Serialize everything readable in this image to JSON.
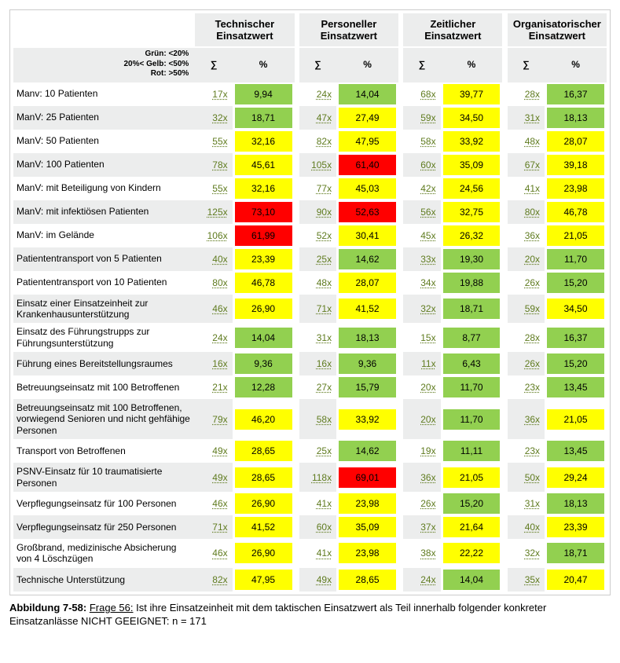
{
  "legend": {
    "green": "Grün: <20%",
    "yellow": "20%< Gelb: <50%",
    "red": "Rot: >50%"
  },
  "thresholds": {
    "green_max": 20,
    "yellow_max": 50
  },
  "colors": {
    "green": "#92d050",
    "yellow": "#ffff00",
    "red": "#ff0000",
    "header_bg": "#eceded",
    "sum_text": "#5f7b1f"
  },
  "groups": [
    {
      "label_line1": "Technischer",
      "label_line2": "Einsatzwert"
    },
    {
      "label_line1": "Personeller",
      "label_line2": "Einsatzwert"
    },
    {
      "label_line1": "Zeitlicher",
      "label_line2": "Einsatzwert"
    },
    {
      "label_line1": "Organisatorischer",
      "label_line2": "Einsatzwert"
    }
  ],
  "subheads": {
    "sum": "∑",
    "pct": "%"
  },
  "rows": [
    {
      "label": "Manv: 10 Patienten",
      "cells": [
        {
          "s": "17x",
          "p": "9,94"
        },
        {
          "s": "24x",
          "p": "14,04"
        },
        {
          "s": "68x",
          "p": "39,77"
        },
        {
          "s": "28x",
          "p": "16,37"
        }
      ]
    },
    {
      "label": "ManV: 25 Patienten",
      "cells": [
        {
          "s": "32x",
          "p": "18,71"
        },
        {
          "s": "47x",
          "p": "27,49"
        },
        {
          "s": "59x",
          "p": "34,50"
        },
        {
          "s": "31x",
          "p": "18,13"
        }
      ]
    },
    {
      "label": "ManV: 50 Patienten",
      "cells": [
        {
          "s": "55x",
          "p": "32,16"
        },
        {
          "s": "82x",
          "p": "47,95"
        },
        {
          "s": "58x",
          "p": "33,92"
        },
        {
          "s": "48x",
          "p": "28,07"
        }
      ]
    },
    {
      "label": "ManV: 100 Patienten",
      "cells": [
        {
          "s": "78x",
          "p": "45,61"
        },
        {
          "s": "105x",
          "p": "61,40"
        },
        {
          "s": "60x",
          "p": "35,09"
        },
        {
          "s": "67x",
          "p": "39,18"
        }
      ]
    },
    {
      "label": "ManV: mit Beteiligung von Kindern",
      "cells": [
        {
          "s": "55x",
          "p": "32,16"
        },
        {
          "s": "77x",
          "p": "45,03"
        },
        {
          "s": "42x",
          "p": "24,56"
        },
        {
          "s": "41x",
          "p": "23,98"
        }
      ]
    },
    {
      "label": "ManV: mit infektiösen Patienten",
      "cells": [
        {
          "s": "125x",
          "p": "73,10"
        },
        {
          "s": "90x",
          "p": "52,63"
        },
        {
          "s": "56x",
          "p": "32,75"
        },
        {
          "s": "80x",
          "p": "46,78"
        }
      ]
    },
    {
      "label": "ManV: im Gelände",
      "cells": [
        {
          "s": "106x",
          "p": "61,99"
        },
        {
          "s": "52x",
          "p": "30,41"
        },
        {
          "s": "45x",
          "p": "26,32"
        },
        {
          "s": "36x",
          "p": "21,05"
        }
      ]
    },
    {
      "label": "Patiententransport von 5 Patienten",
      "cells": [
        {
          "s": "40x",
          "p": "23,39"
        },
        {
          "s": "25x",
          "p": "14,62"
        },
        {
          "s": "33x",
          "p": "19,30"
        },
        {
          "s": "20x",
          "p": "11,70"
        }
      ]
    },
    {
      "label": "Patiententransport von 10 Patienten",
      "cells": [
        {
          "s": "80x",
          "p": "46,78"
        },
        {
          "s": "48x",
          "p": "28,07"
        },
        {
          "s": "34x",
          "p": "19,88"
        },
        {
          "s": "26x",
          "p": "15,20"
        }
      ]
    },
    {
      "label": "Einsatz einer Einsatzeinheit zur Krankenhausunterstützung",
      "cells": [
        {
          "s": "46x",
          "p": "26,90"
        },
        {
          "s": "71x",
          "p": "41,52"
        },
        {
          "s": "32x",
          "p": "18,71"
        },
        {
          "s": "59x",
          "p": "34,50"
        }
      ]
    },
    {
      "label": "Einsatz des Führungstrupps zur Führungsunterstützung",
      "cells": [
        {
          "s": "24x",
          "p": "14,04"
        },
        {
          "s": "31x",
          "p": "18,13"
        },
        {
          "s": "15x",
          "p": "8,77"
        },
        {
          "s": "28x",
          "p": "16,37"
        }
      ]
    },
    {
      "label": "Führung eines Bereitstellungsraumes",
      "cells": [
        {
          "s": "16x",
          "p": "9,36"
        },
        {
          "s": "16x",
          "p": "9,36"
        },
        {
          "s": "11x",
          "p": "6,43"
        },
        {
          "s": "26x",
          "p": "15,20"
        }
      ]
    },
    {
      "label": "Betreuungseinsatz mit 100 Betroffenen",
      "cells": [
        {
          "s": "21x",
          "p": "12,28"
        },
        {
          "s": "27x",
          "p": "15,79"
        },
        {
          "s": "20x",
          "p": "11,70"
        },
        {
          "s": "23x",
          "p": "13,45"
        }
      ]
    },
    {
      "label": "Betreuungseinsatz mit 100 Betroffenen, vorwiegend Senioren und nicht gehfähige Personen",
      "cells": [
        {
          "s": "79x",
          "p": "46,20"
        },
        {
          "s": "58x",
          "p": "33,92"
        },
        {
          "s": "20x",
          "p": "11,70"
        },
        {
          "s": "36x",
          "p": "21,05"
        }
      ]
    },
    {
      "label": "Transport von Betroffenen",
      "cells": [
        {
          "s": "49x",
          "p": "28,65"
        },
        {
          "s": "25x",
          "p": "14,62"
        },
        {
          "s": "19x",
          "p": "11,11"
        },
        {
          "s": "23x",
          "p": "13,45"
        }
      ]
    },
    {
      "label": "PSNV-Einsatz für 10 traumatisierte Personen",
      "cells": [
        {
          "s": "49x",
          "p": "28,65"
        },
        {
          "s": "118x",
          "p": "69,01"
        },
        {
          "s": "36x",
          "p": "21,05"
        },
        {
          "s": "50x",
          "p": "29,24"
        }
      ]
    },
    {
      "label": "Verpflegungseinsatz für 100 Personen",
      "cells": [
        {
          "s": "46x",
          "p": "26,90"
        },
        {
          "s": "41x",
          "p": "23,98"
        },
        {
          "s": "26x",
          "p": "15,20"
        },
        {
          "s": "31x",
          "p": "18,13"
        }
      ]
    },
    {
      "label": "Verpflegungseinsatz für 250 Personen",
      "cells": [
        {
          "s": "71x",
          "p": "41,52"
        },
        {
          "s": "60x",
          "p": "35,09"
        },
        {
          "s": "37x",
          "p": "21,64"
        },
        {
          "s": "40x",
          "p": "23,39"
        }
      ]
    },
    {
      "label": "Großbrand, medizinische Absicherung von 4 Löschzügen",
      "cells": [
        {
          "s": "46x",
          "p": "26,90"
        },
        {
          "s": "41x",
          "p": "23,98"
        },
        {
          "s": "38x",
          "p": "22,22"
        },
        {
          "s": "32x",
          "p": "18,71"
        }
      ]
    },
    {
      "label": "Technische Unterstützung",
      "cells": [
        {
          "s": "82x",
          "p": "47,95"
        },
        {
          "s": "49x",
          "p": "28,65"
        },
        {
          "s": "24x",
          "p": "14,04"
        },
        {
          "s": "35x",
          "p": "20,47"
        }
      ]
    }
  ],
  "caption": {
    "fig": "Abbildung 7-58:",
    "q": "Frage 56:",
    "text": " Ist ihre Einsatzeinheit mit dem taktischen Einsatzwert als Teil innerhalb folgender konkreter Einsatzanlässe NICHT GEEIGNET: n = 171"
  }
}
